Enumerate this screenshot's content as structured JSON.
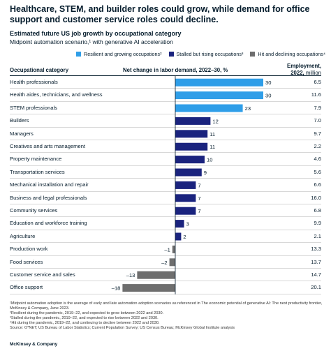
{
  "headline": "Healthcare, STEM, and builder roles could grow, while demand for office support and customer service roles could decline.",
  "subtitle": "Estimated future US job growth by occupational category",
  "subtitle2": "Midpoint automation scenario,¹ with generative AI acceleration",
  "legend": [
    {
      "label": "Resilient and growing occupations²",
      "color": "#2f9ee8"
    },
    {
      "label": "Stalled but rising occupations³",
      "color": "#1a237e"
    },
    {
      "label": "Hit and declining occupations⁴",
      "color": "#6e6e6e"
    }
  ],
  "columns": {
    "category": "Occupational category",
    "net": "Net change in labor demand, 2022–30, %",
    "emp_line1": "Employment,",
    "emp_line2": "2022,",
    "emp_unit": "million"
  },
  "chart_data": {
    "type": "bar",
    "orientation": "horizontal",
    "xlabel": "Net change in labor demand, 2022–30, %",
    "categories": [
      "Health professionals",
      "Health aides, technicians, and wellness",
      "STEM professionals",
      "Builders",
      "Managers",
      "Creatives and arts management",
      "Property maintenance",
      "Transportation services",
      "Mechanical installation and repair",
      "Business and legal professionals",
      "Community services",
      "Education and workforce training",
      "Agriculture",
      "Production work",
      "Food services",
      "Customer service and sales",
      "Office support"
    ],
    "values": [
      30,
      30,
      23,
      12,
      11,
      11,
      10,
      9,
      7,
      7,
      7,
      3,
      2,
      -1,
      -2,
      -13,
      -18
    ],
    "value_labels": [
      "30",
      "30",
      "23",
      "12",
      "11",
      "11",
      "10",
      "9",
      "7",
      "7",
      "7",
      "3",
      "2",
      "–1",
      "–2",
      "–13",
      "–18"
    ],
    "groups": [
      "resilient",
      "resilient",
      "resilient",
      "stalled",
      "stalled",
      "stalled",
      "stalled",
      "stalled",
      "stalled",
      "stalled",
      "stalled",
      "stalled",
      "stalled",
      "declining",
      "declining",
      "declining",
      "declining"
    ],
    "employment_2022_million": [
      "6.5",
      "11.6",
      "7.9",
      "7.0",
      "9.7",
      "2.2",
      "4.6",
      "5.6",
      "6.6",
      "16.0",
      "6.8",
      "9.9",
      "2.1",
      "13.3",
      "13.7",
      "14.7",
      "20.1"
    ],
    "colors": {
      "resilient": "#2f9ee8",
      "stalled": "#1a237e",
      "declining": "#6e6e6e"
    },
    "xlim": [
      -18,
      30
    ]
  },
  "footnotes": [
    "¹Midpoint automation adoption is the average of early and late automation adoption scenarios as referenced in The economic potential of generative AI: The next productivity frontier, McKinsey & Company, June 2023.",
    "²Resilient during the pandemic, 2019–22, and expected to grow between 2022 and 2030.",
    "³Stalled during the pandemic, 2019–22, and expected to rise between 2022 and 2030.",
    "⁴Hit during the pandemic, 2019–22, and continuing to decline between 2022 and 2030.",
    "Source: O*NET; US Bureau of Labor Statistics; Current Population Survey; US Census Bureau; McKinsey Global Institute analysis"
  ],
  "brand": "McKinsey & Company"
}
